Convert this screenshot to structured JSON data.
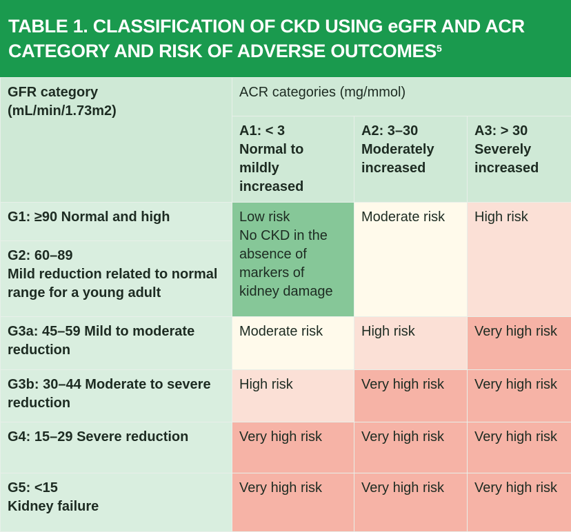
{
  "title": {
    "line1": "TABLE 1. CLASSIFICATION OF CKD USING eGFR AND ACR",
    "line2": "CATEGORY AND RISK OF ADVERSE OUTCOMES",
    "ref": "5"
  },
  "header": {
    "gfr_label": "GFR category",
    "gfr_unit": "(mL/min/1.73m2)",
    "acr_label": "ACR categories (mg/mmol)",
    "acr_cols": [
      {
        "code": "A1: < 3",
        "desc": "Normal to mildly increased"
      },
      {
        "code": "A2: 3–30",
        "desc": "Moderately increased"
      },
      {
        "code": "A3: > 30",
        "desc": "Severely increased"
      }
    ]
  },
  "rows": [
    {
      "label": "G1: ≥90 Normal and high"
    },
    {
      "label_line1": "G2: 60–89",
      "label_line2": "Mild reduction related to normal range for a young adult"
    },
    {
      "label": "G3a: 45–59 Mild to moderate reduction"
    },
    {
      "label": "G3b: 30–44 Moderate to severe reduction"
    },
    {
      "label": "G4: 15–29 Severe reduction"
    },
    {
      "label_line1": "G5: <15",
      "label_line2": "Kidney failure"
    }
  ],
  "cells": {
    "g12_a1_line1": "Low risk",
    "g12_a1_line2": "No CKD in the absence of markers of kidney damage",
    "g12_a2": "Moderate risk",
    "g12_a3": "High risk",
    "g3a": [
      "Moderate risk",
      "High risk",
      "Very high risk"
    ],
    "g3b": [
      "High risk",
      "Very high risk",
      "Very high risk"
    ],
    "g4": [
      "Very high risk",
      "Very high risk",
      "Very high risk"
    ],
    "g5": [
      "Very high risk",
      "Very high risk",
      "Very high risk"
    ]
  },
  "colors": {
    "title_bg": "#1a9a4e",
    "low_risk": "#86c798",
    "moderate_risk": "#fffaeb",
    "high_risk": "#fbe0d6",
    "very_high_risk": "#f6b3a6"
  }
}
